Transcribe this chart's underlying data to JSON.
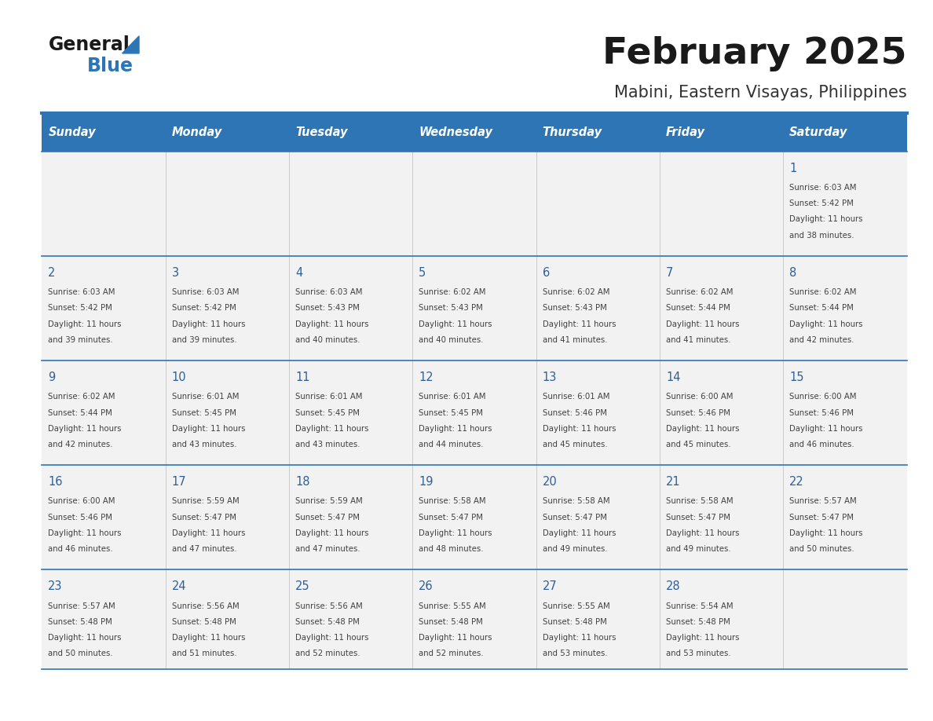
{
  "title": "February 2025",
  "subtitle": "Mabini, Eastern Visayas, Philippines",
  "days_of_week": [
    "Sunday",
    "Monday",
    "Tuesday",
    "Wednesday",
    "Thursday",
    "Friday",
    "Saturday"
  ],
  "header_bg": "#2e75b6",
  "header_text": "#ffffff",
  "cell_bg_light": "#f2f2f2",
  "cell_bg_white": "#ffffff",
  "border_color": "#2e75b6",
  "separator_color": "#2e75b6",
  "day_number_color": "#2e6099",
  "info_color": "#404040",
  "title_color": "#1a1a1a",
  "subtitle_color": "#333333",
  "logo_general_color": "#1a1a1a",
  "logo_blue_color": "#2e75b6",
  "calendar_data": [
    [
      null,
      null,
      null,
      null,
      null,
      null,
      {
        "day": 1,
        "sunrise": "6:03 AM",
        "sunset": "5:42 PM",
        "daylight": "11 hours and 38 minutes."
      }
    ],
    [
      {
        "day": 2,
        "sunrise": "6:03 AM",
        "sunset": "5:42 PM",
        "daylight": "11 hours and 39 minutes."
      },
      {
        "day": 3,
        "sunrise": "6:03 AM",
        "sunset": "5:42 PM",
        "daylight": "11 hours and 39 minutes."
      },
      {
        "day": 4,
        "sunrise": "6:03 AM",
        "sunset": "5:43 PM",
        "daylight": "11 hours and 40 minutes."
      },
      {
        "day": 5,
        "sunrise": "6:02 AM",
        "sunset": "5:43 PM",
        "daylight": "11 hours and 40 minutes."
      },
      {
        "day": 6,
        "sunrise": "6:02 AM",
        "sunset": "5:43 PM",
        "daylight": "11 hours and 41 minutes."
      },
      {
        "day": 7,
        "sunrise": "6:02 AM",
        "sunset": "5:44 PM",
        "daylight": "11 hours and 41 minutes."
      },
      {
        "day": 8,
        "sunrise": "6:02 AM",
        "sunset": "5:44 PM",
        "daylight": "11 hours and 42 minutes."
      }
    ],
    [
      {
        "day": 9,
        "sunrise": "6:02 AM",
        "sunset": "5:44 PM",
        "daylight": "11 hours and 42 minutes."
      },
      {
        "day": 10,
        "sunrise": "6:01 AM",
        "sunset": "5:45 PM",
        "daylight": "11 hours and 43 minutes."
      },
      {
        "day": 11,
        "sunrise": "6:01 AM",
        "sunset": "5:45 PM",
        "daylight": "11 hours and 43 minutes."
      },
      {
        "day": 12,
        "sunrise": "6:01 AM",
        "sunset": "5:45 PM",
        "daylight": "11 hours and 44 minutes."
      },
      {
        "day": 13,
        "sunrise": "6:01 AM",
        "sunset": "5:46 PM",
        "daylight": "11 hours and 45 minutes."
      },
      {
        "day": 14,
        "sunrise": "6:00 AM",
        "sunset": "5:46 PM",
        "daylight": "11 hours and 45 minutes."
      },
      {
        "day": 15,
        "sunrise": "6:00 AM",
        "sunset": "5:46 PM",
        "daylight": "11 hours and 46 minutes."
      }
    ],
    [
      {
        "day": 16,
        "sunrise": "6:00 AM",
        "sunset": "5:46 PM",
        "daylight": "11 hours and 46 minutes."
      },
      {
        "day": 17,
        "sunrise": "5:59 AM",
        "sunset": "5:47 PM",
        "daylight": "11 hours and 47 minutes."
      },
      {
        "day": 18,
        "sunrise": "5:59 AM",
        "sunset": "5:47 PM",
        "daylight": "11 hours and 47 minutes."
      },
      {
        "day": 19,
        "sunrise": "5:58 AM",
        "sunset": "5:47 PM",
        "daylight": "11 hours and 48 minutes."
      },
      {
        "day": 20,
        "sunrise": "5:58 AM",
        "sunset": "5:47 PM",
        "daylight": "11 hours and 49 minutes."
      },
      {
        "day": 21,
        "sunrise": "5:58 AM",
        "sunset": "5:47 PM",
        "daylight": "11 hours and 49 minutes."
      },
      {
        "day": 22,
        "sunrise": "5:57 AM",
        "sunset": "5:47 PM",
        "daylight": "11 hours and 50 minutes."
      }
    ],
    [
      {
        "day": 23,
        "sunrise": "5:57 AM",
        "sunset": "5:48 PM",
        "daylight": "11 hours and 50 minutes."
      },
      {
        "day": 24,
        "sunrise": "5:56 AM",
        "sunset": "5:48 PM",
        "daylight": "11 hours and 51 minutes."
      },
      {
        "day": 25,
        "sunrise": "5:56 AM",
        "sunset": "5:48 PM",
        "daylight": "11 hours and 52 minutes."
      },
      {
        "day": 26,
        "sunrise": "5:55 AM",
        "sunset": "5:48 PM",
        "daylight": "11 hours and 52 minutes."
      },
      {
        "day": 27,
        "sunrise": "5:55 AM",
        "sunset": "5:48 PM",
        "daylight": "11 hours and 53 minutes."
      },
      {
        "day": 28,
        "sunrise": "5:54 AM",
        "sunset": "5:48 PM",
        "daylight": "11 hours and 53 minutes."
      },
      null
    ]
  ]
}
